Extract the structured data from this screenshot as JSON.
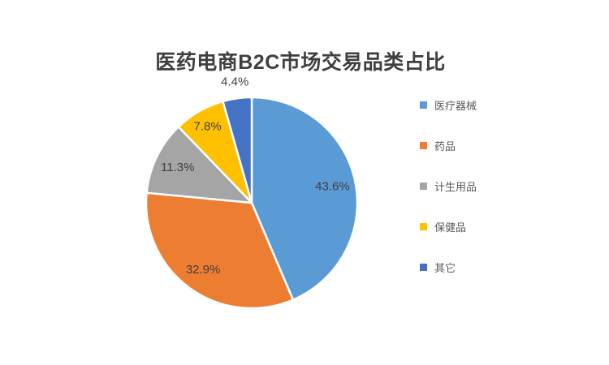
{
  "page": {
    "background": "#ffffff"
  },
  "chart_data": {
    "type": "pie",
    "title": "医药电商B2C市场交易品类占比",
    "categories": [
      "医疗器械",
      "药品",
      "计生用品",
      "保健品",
      "其它"
    ],
    "values": [
      43.6,
      32.9,
      11.3,
      7.8,
      4.4
    ],
    "labels": [
      "43.6%",
      "32.9%",
      "11.3%",
      "7.8%",
      "4.4%"
    ],
    "colors": [
      "#5B9BD5",
      "#ED7D31",
      "#A5A5A5",
      "#FFC000",
      "#4472C4"
    ],
    "legend_position": "right",
    "start_angle_deg": 0,
    "direction": "clockwise",
    "label_radius_factors": [
      0.78,
      0.78,
      0.78,
      0.84,
      1.16
    ],
    "title_color": "#3f3f3f",
    "label_color": "#404040",
    "legend_text_color": "#595959",
    "slice_gap_color": "#ffffff"
  }
}
